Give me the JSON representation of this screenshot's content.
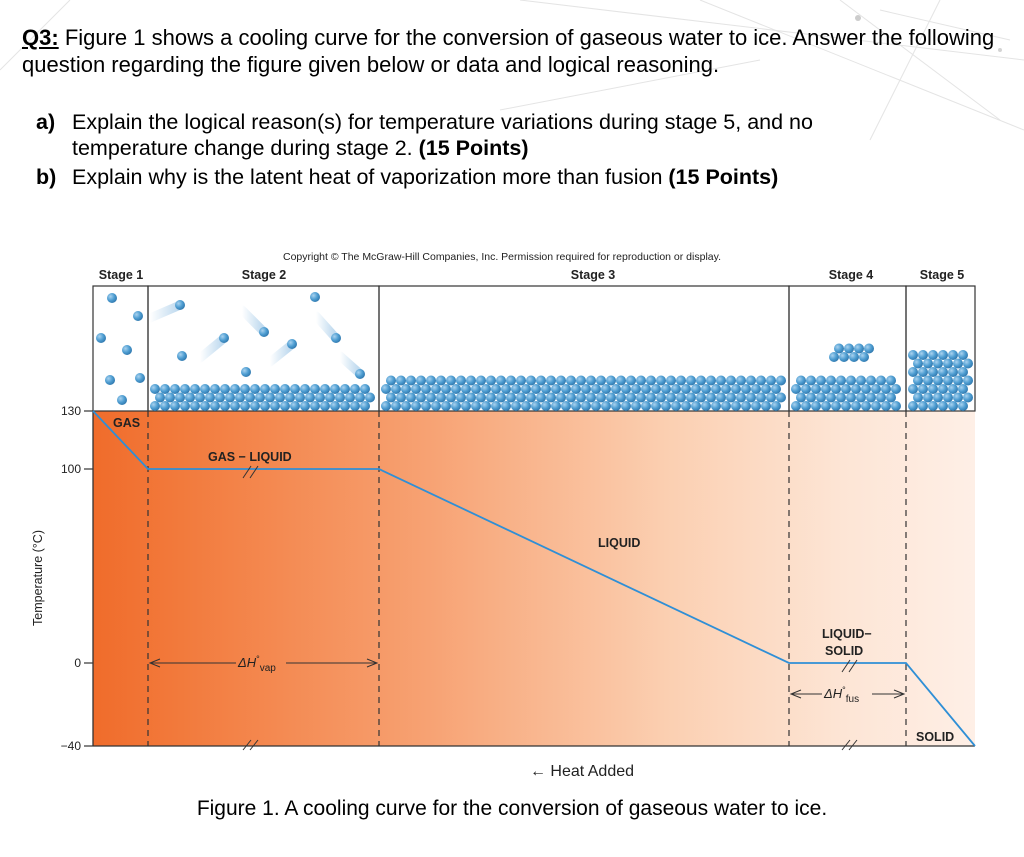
{
  "question": {
    "label": "Q3:",
    "text": "Figure 1 shows a cooling curve for the conversion of gaseous water to ice. Answer the following question regarding the figure given below or data and logical reasoning.",
    "items": [
      {
        "label": "a)",
        "line1": "Explain the logical reason(s) for temperature variations during stage 5, and no",
        "line2": "temperature change during stage 2.",
        "points": "(15 Points)"
      },
      {
        "label": "b)",
        "text": "Explain why is the latent heat of vaporization more than fusion",
        "points": "(15 Points)"
      }
    ]
  },
  "figure": {
    "copyright": "Copyright © The McGraw-Hill Companies, Inc. Permission required for reproduction or display.",
    "stages": [
      "Stage 1",
      "Stage 2",
      "Stage 3",
      "Stage 4",
      "Stage 5"
    ],
    "y_axis_label": "Temperature (°C)",
    "y_ticks": [
      "130",
      "100",
      "0",
      "−40"
    ],
    "region_labels": {
      "gas": "GAS",
      "gas_liquid": "GAS − LIQUID",
      "liquid": "LIQUID",
      "liquid_solid_1": "LIQUID−",
      "liquid_solid_2": "SOLID",
      "solid": "SOLID"
    },
    "dh_vap": {
      "main": "ΔH",
      "sup": "°",
      "sub": "vap"
    },
    "dh_fus": {
      "main": "ΔH",
      "sup": "°",
      "sub": "fus"
    },
    "x_axis_label": "← Heat Added",
    "caption": "Figure 1. A cooling curve for the conversion of gaseous water to ice.",
    "colors": {
      "hot": "#f06c2b",
      "cool": "#fde9dc",
      "curve": "#2f8fd6",
      "molecule": "#4f9ed2"
    }
  }
}
